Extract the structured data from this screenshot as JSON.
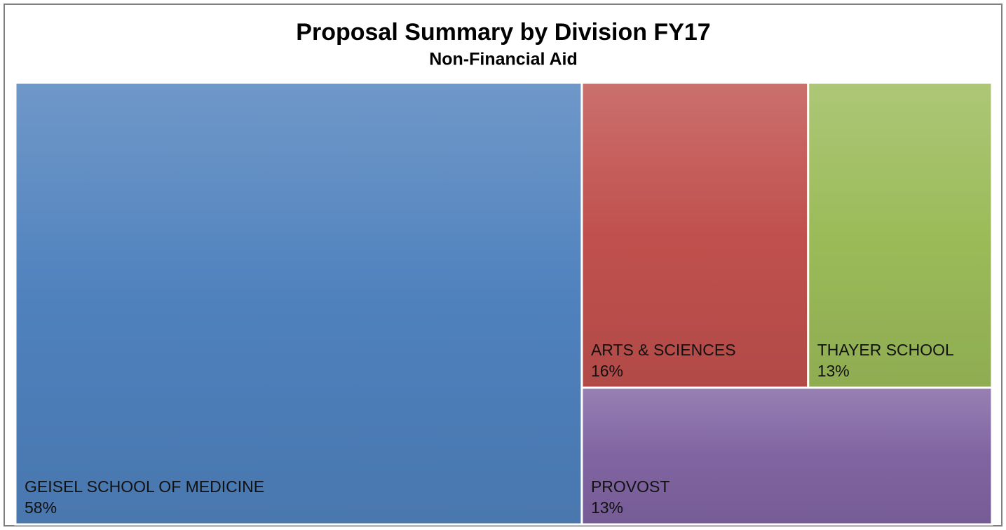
{
  "chart_data": {
    "type": "treemap",
    "title": "Proposal Summary by Division FY17",
    "subtitle": "Non-Financial Aid",
    "categories": [
      "GEISEL SCHOOL OF MEDICINE",
      "ARTS & SCIENCES",
      "THAYER SCHOOL",
      "PROVOST"
    ],
    "values": [
      58,
      16,
      13,
      13
    ],
    "value_labels": [
      "58%",
      "16%",
      "13%",
      "13%"
    ],
    "colors": [
      "#4f81bd",
      "#c0504d",
      "#9bbb59",
      "#8064a2"
    ]
  }
}
